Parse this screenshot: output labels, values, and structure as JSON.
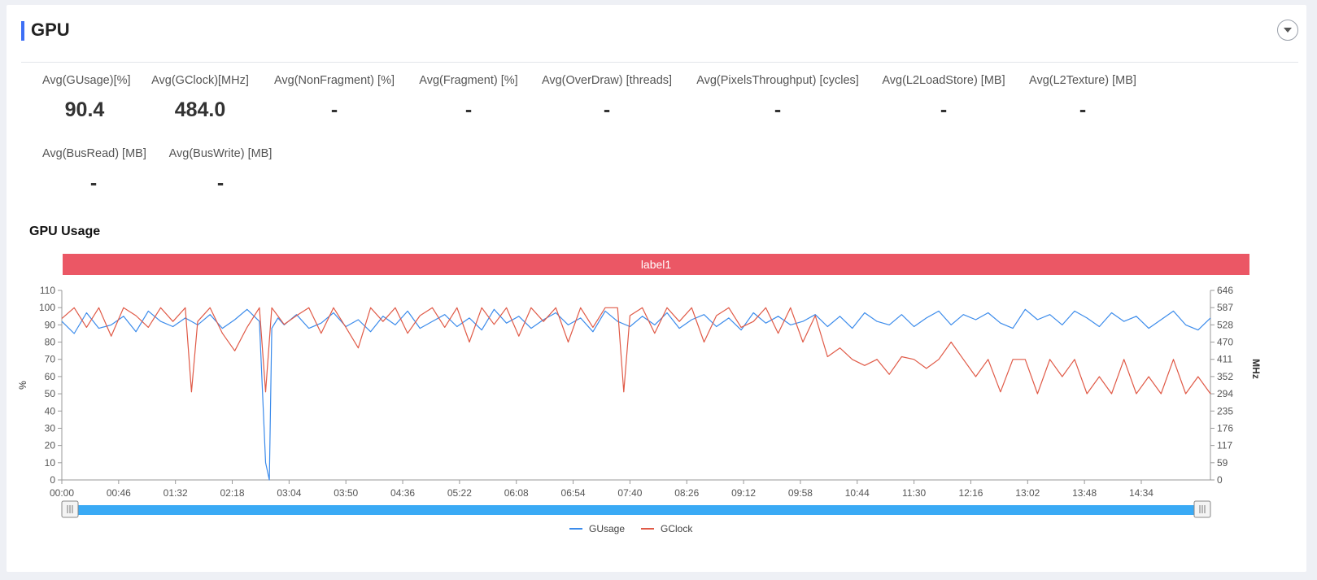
{
  "section": {
    "title": "GPU"
  },
  "metrics": [
    {
      "label": "Avg(GUsage)[%]",
      "value": "90.4"
    },
    {
      "label": "Avg(GClock)[MHz]",
      "value": "484.0"
    },
    {
      "label": "Avg(NonFragment) [%]",
      "value": "-"
    },
    {
      "label": "Avg(Fragment) [%]",
      "value": "-"
    },
    {
      "label": "Avg(OverDraw) [threads]",
      "value": "-"
    },
    {
      "label": "Avg(PixelsThroughput) [cycles]",
      "value": "-"
    },
    {
      "label": "Avg(L2LoadStore) [MB]",
      "value": "-"
    },
    {
      "label": "Avg(L2Texture) [MB]",
      "value": "-"
    },
    {
      "label": "Avg(BusRead) [MB]",
      "value": "-"
    },
    {
      "label": "Avg(BusWrite) [MB]",
      "value": "-"
    }
  ],
  "chart_data": {
    "type": "line",
    "title": "GPU Usage",
    "band_label": "label1",
    "xlabel": "",
    "ylabel": "%",
    "y2label": "MHz",
    "ylim": [
      0,
      110
    ],
    "y2lim": [
      0,
      646
    ],
    "yticks": [
      "0",
      "10",
      "20",
      "30",
      "40",
      "50",
      "60",
      "70",
      "80",
      "90",
      "100",
      "110"
    ],
    "y2ticks": [
      "0",
      "59",
      "117",
      "176",
      "235",
      "294",
      "352",
      "411",
      "470",
      "528",
      "587",
      "646"
    ],
    "xticks": [
      "00:00",
      "00:46",
      "01:32",
      "02:18",
      "03:04",
      "03:50",
      "04:36",
      "05:22",
      "06:08",
      "06:54",
      "07:40",
      "08:26",
      "09:12",
      "09:58",
      "10:44",
      "11:30",
      "12:16",
      "13:02",
      "13:48",
      "14:34"
    ],
    "x_seconds_range": [
      0,
      930
    ],
    "colors": {
      "GUsage": "#3b8beb",
      "GClock": "#e05a47"
    },
    "series": [
      {
        "name": "GUsage",
        "axis": "left",
        "x_seconds": [
          0,
          10,
          20,
          30,
          40,
          50,
          60,
          70,
          80,
          90,
          100,
          110,
          120,
          130,
          140,
          150,
          160,
          165,
          168,
          170,
          175,
          180,
          190,
          200,
          210,
          220,
          230,
          240,
          250,
          260,
          270,
          280,
          290,
          300,
          310,
          320,
          330,
          340,
          350,
          360,
          370,
          380,
          390,
          400,
          410,
          420,
          430,
          440,
          450,
          460,
          470,
          480,
          490,
          500,
          510,
          520,
          530,
          540,
          550,
          560,
          570,
          580,
          590,
          600,
          610,
          620,
          630,
          640,
          650,
          660,
          670,
          680,
          690,
          700,
          710,
          720,
          730,
          740,
          750,
          760,
          770,
          780,
          790,
          800,
          810,
          820,
          830,
          840,
          850,
          860,
          870,
          880,
          890,
          900,
          910,
          920,
          930
        ],
        "values": [
          92,
          85,
          97,
          88,
          90,
          95,
          86,
          98,
          92,
          89,
          94,
          90,
          96,
          88,
          93,
          99,
          92,
          10,
          0,
          88,
          94,
          90,
          96,
          88,
          91,
          97,
          89,
          93,
          86,
          95,
          90,
          98,
          88,
          92,
          96,
          89,
          94,
          87,
          99,
          91,
          95,
          88,
          93,
          97,
          90,
          94,
          86,
          98,
          92,
          89,
          95,
          90,
          97,
          88,
          93,
          96,
          89,
          94,
          87,
          97,
          91,
          95,
          90,
          92,
          96,
          89,
          95,
          88,
          97,
          92,
          90,
          96,
          89,
          94,
          98,
          90,
          96,
          93,
          97,
          91,
          88,
          99,
          93,
          96,
          90,
          98,
          94,
          89,
          97,
          92,
          95,
          88,
          93,
          98,
          90,
          87,
          94
        ]
      },
      {
        "name": "GClock",
        "axis": "right",
        "x_seconds": [
          0,
          10,
          20,
          30,
          40,
          50,
          60,
          70,
          80,
          90,
          100,
          105,
          110,
          120,
          130,
          140,
          150,
          160,
          165,
          170,
          180,
          190,
          200,
          210,
          220,
          230,
          240,
          250,
          260,
          270,
          280,
          290,
          300,
          310,
          320,
          330,
          340,
          350,
          360,
          370,
          380,
          390,
          400,
          410,
          420,
          430,
          440,
          450,
          455,
          460,
          470,
          480,
          490,
          500,
          510,
          520,
          530,
          540,
          550,
          560,
          570,
          580,
          590,
          600,
          610,
          620,
          630,
          640,
          650,
          660,
          670,
          680,
          690,
          700,
          710,
          720,
          730,
          740,
          750,
          760,
          770,
          780,
          790,
          800,
          810,
          820,
          830,
          840,
          850,
          860,
          870,
          880,
          890,
          900,
          910,
          920,
          930
        ],
        "values": [
          550,
          587,
          520,
          587,
          490,
          587,
          560,
          520,
          587,
          540,
          587,
          300,
          540,
          587,
          500,
          440,
          520,
          587,
          300,
          587,
          530,
          560,
          587,
          500,
          587,
          520,
          450,
          587,
          540,
          587,
          500,
          560,
          587,
          520,
          587,
          470,
          587,
          530,
          587,
          490,
          587,
          540,
          587,
          470,
          587,
          520,
          587,
          587,
          300,
          560,
          587,
          500,
          587,
          540,
          587,
          470,
          560,
          587,
          520,
          540,
          587,
          500,
          587,
          470,
          560,
          420,
          450,
          411,
          390,
          411,
          360,
          420,
          411,
          380,
          411,
          470,
          411,
          352,
          411,
          300,
          411,
          411,
          294,
          411,
          352,
          411,
          294,
          352,
          294,
          411,
          294,
          352,
          294,
          411,
          294,
          352,
          294
        ]
      }
    ],
    "legend": [
      "GUsage",
      "GClock"
    ],
    "legend_position": "bottom",
    "grid": false
  }
}
